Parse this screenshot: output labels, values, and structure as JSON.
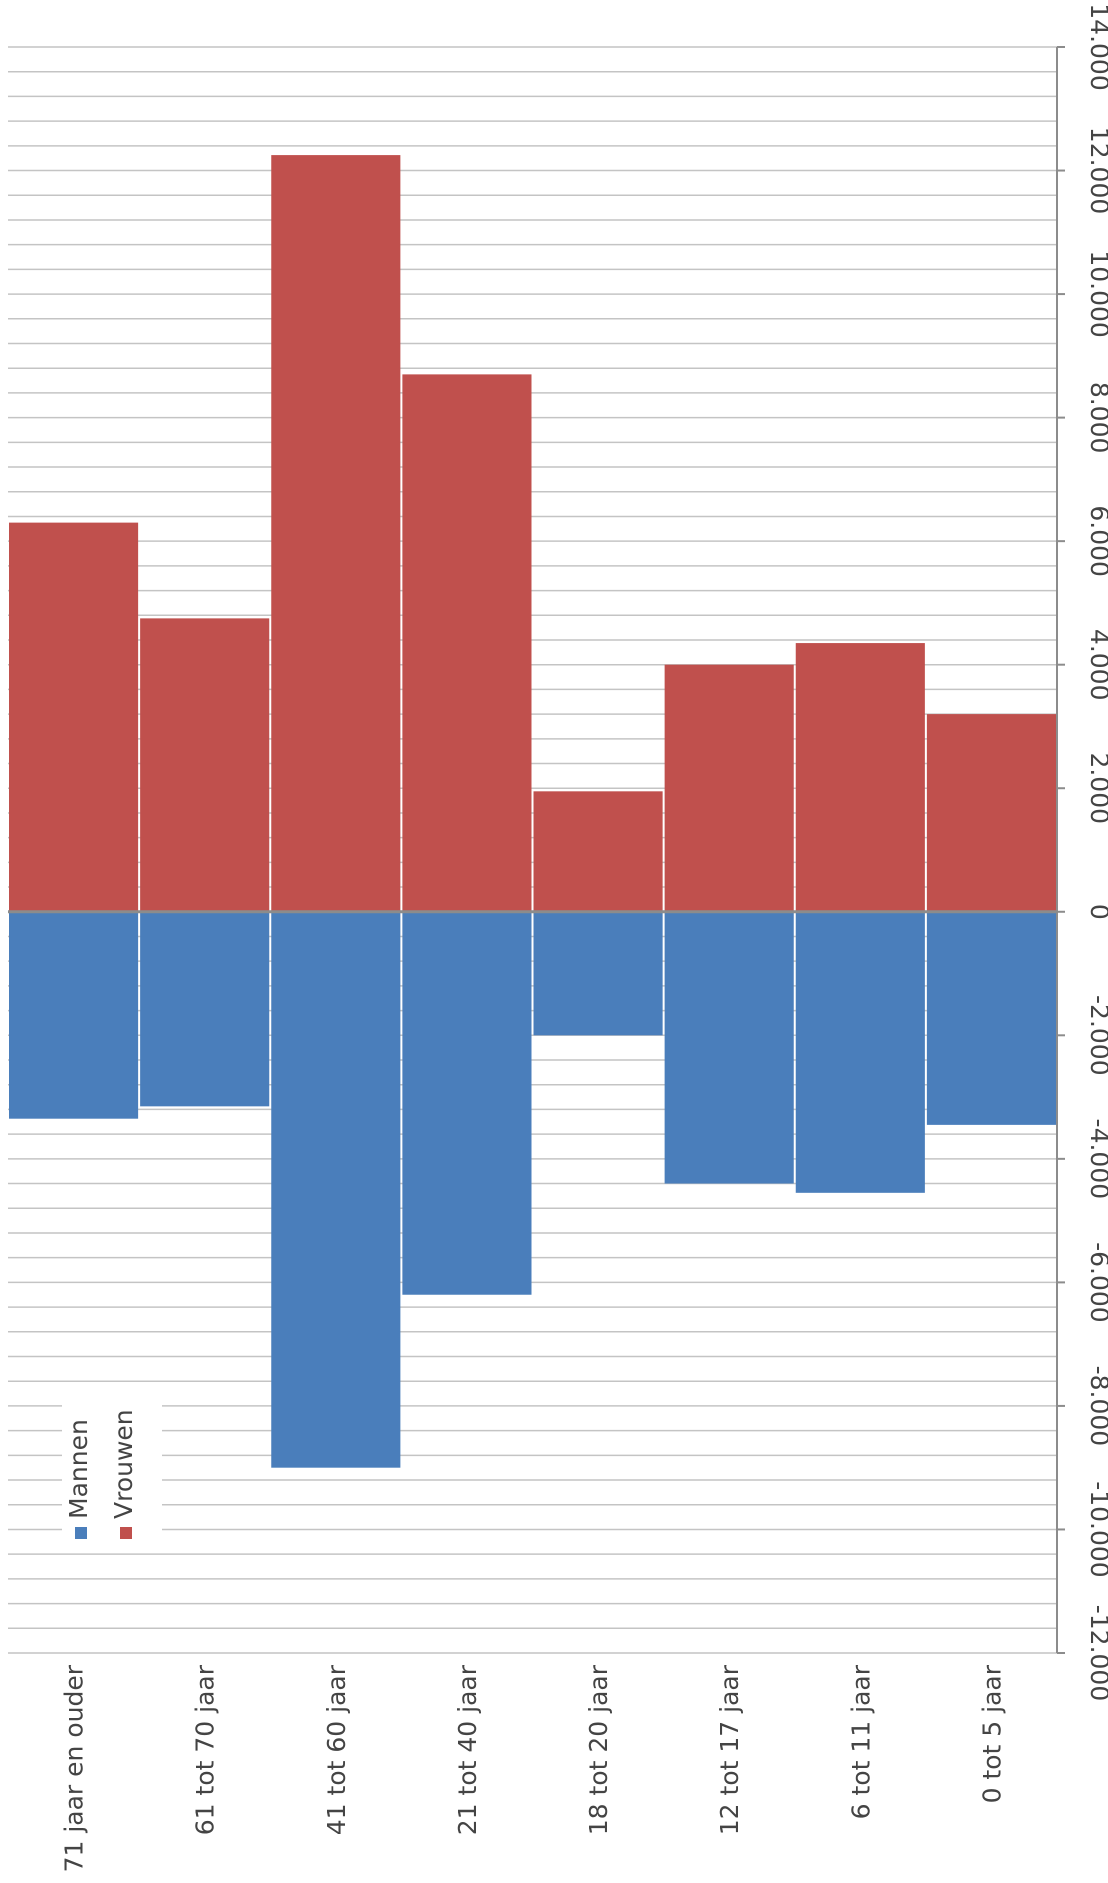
{
  "chart_data": {
    "type": "bar",
    "orientation": "rotated-90-clockwise",
    "categories": [
      "71 jaar en ouder",
      "61 tot 70 jaar",
      "41 tot 60 jaar",
      "21 tot 40 jaar",
      "18 tot 20 jaar",
      "12 tot 17 jaar",
      "6 tot 11 jaar",
      "0 tot 5 jaar"
    ],
    "series": [
      {
        "name": "Mannen",
        "color": "#4a7ebb",
        "values": [
          -3350,
          -3150,
          -9000,
          -6200,
          -2000,
          -4400,
          -4550,
          -3450
        ]
      },
      {
        "name": "Vrouwen",
        "color": "#c0504d",
        "values": [
          6300,
          4750,
          12250,
          8700,
          1950,
          4000,
          4350,
          3200
        ]
      }
    ],
    "ylim": [
      -12000,
      14000
    ],
    "ticks": [
      -12000,
      -10000,
      -8000,
      -6000,
      -4000,
      -2000,
      0,
      2000,
      4000,
      6000,
      8000,
      10000,
      12000,
      14000
    ],
    "tick_labels": [
      "-12.000",
      "-10.000",
      "-8.000",
      "-6.000",
      "-4.000",
      "-2.000",
      "0",
      "2.000",
      "4.000",
      "6.000",
      "8.000",
      "10.000",
      "12.000",
      "14.000"
    ],
    "minor_gridline_step": 400,
    "grid": true,
    "legend": "bottom-left",
    "title": "",
    "xlabel": "",
    "ylabel": ""
  },
  "legend": {
    "items": [
      "Mannen",
      "Vrouwen"
    ]
  }
}
